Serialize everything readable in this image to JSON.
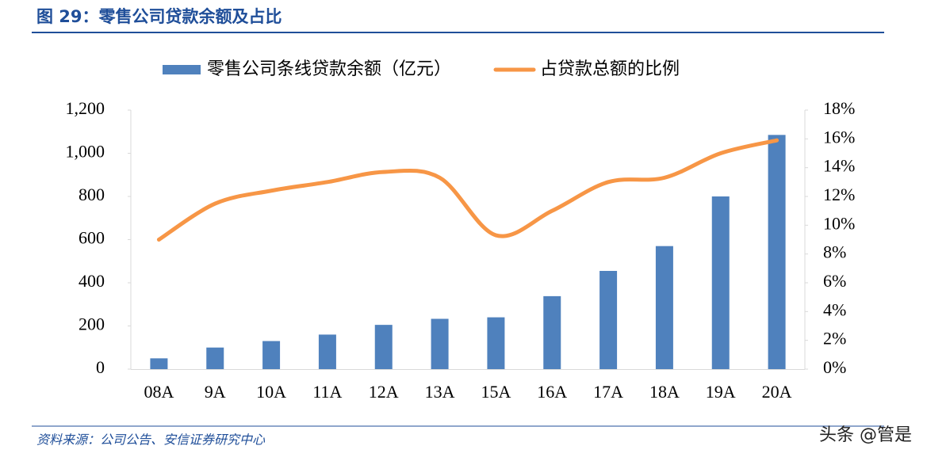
{
  "title": "图 29：零售公司贷款余额及占比",
  "source": "资料来源：公司公告、安信证券研究中心",
  "watermark": "头条 @管是",
  "chart_data": {
    "type": "combo",
    "categories": [
      "08A",
      "9A",
      "10A",
      "11A",
      "12A",
      "13A",
      "15A",
      "16A",
      "17A",
      "18A",
      "19A",
      "20A"
    ],
    "series": [
      {
        "name": "零售公司条线贷款余额（亿元）",
        "type": "bar",
        "color": "#4f81bd",
        "values": [
          50,
          100,
          130,
          160,
          205,
          233,
          240,
          338,
          455,
          570,
          800,
          1085
        ]
      },
      {
        "name": "占贷款总额的比例",
        "type": "line",
        "color": "#f79646",
        "axis": "y2",
        "values": [
          9.0,
          11.5,
          12.4,
          13.0,
          13.7,
          13.3,
          9.3,
          11.0,
          13.0,
          13.3,
          15.0,
          15.9
        ]
      }
    ],
    "ylim": [
      0,
      1200
    ],
    "yticks": [
      0,
      200,
      400,
      600,
      800,
      {
        "value": 1000,
        "label": "1,000"
      },
      {
        "value": 1200,
        "label": "1,200"
      }
    ],
    "y2lim": [
      0,
      18
    ],
    "y2ticks": [
      {
        "value": 0,
        "label": "0%"
      },
      {
        "value": 2,
        "label": "2%"
      },
      {
        "value": 4,
        "label": "4%"
      },
      {
        "value": 6,
        "label": "6%"
      },
      {
        "value": 8,
        "label": "8%"
      },
      {
        "value": 10,
        "label": "10%"
      },
      {
        "value": 12,
        "label": "12%"
      },
      {
        "value": 14,
        "label": "14%"
      },
      {
        "value": 16,
        "label": "16%"
      },
      {
        "value": 18,
        "label": "18%"
      }
    ],
    "legend": "top"
  }
}
